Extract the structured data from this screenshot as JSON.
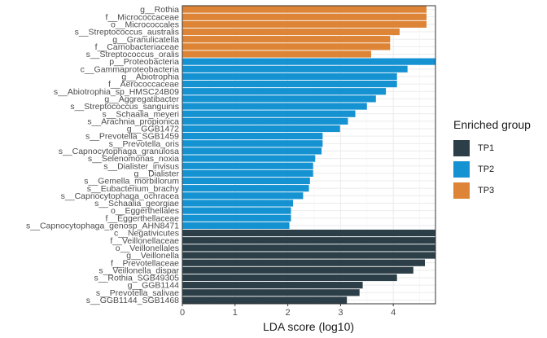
{
  "chart_data": {
    "type": "bar",
    "orientation": "horizontal",
    "xlabel": "LDA score (log10)",
    "ylabel": "",
    "xlim": [
      0,
      4.8
    ],
    "xticks": [
      0,
      1,
      2,
      3,
      4
    ],
    "grid": true,
    "legend": {
      "title": "Enriched group",
      "placement": "right",
      "entries": [
        {
          "name": "TP1",
          "color": "#2C3E47"
        },
        {
          "name": "TP2",
          "color": "#1592D2"
        },
        {
          "name": "TP3",
          "color": "#DD8436"
        }
      ]
    },
    "bars": [
      {
        "label": "g__Rothia",
        "value": 4.63,
        "group": "TP3"
      },
      {
        "label": "f__Micrococcaceae",
        "value": 4.63,
        "group": "TP3"
      },
      {
        "label": "o__Micrococcales",
        "value": 4.63,
        "group": "TP3"
      },
      {
        "label": "s__Streptococcus_australis",
        "value": 4.12,
        "group": "TP3"
      },
      {
        "label": "g__Granulicatella",
        "value": 3.94,
        "group": "TP3"
      },
      {
        "label": "f__Carnobacteriaceae",
        "value": 3.94,
        "group": "TP3"
      },
      {
        "label": "s__Streptococcus_oralis",
        "value": 3.58,
        "group": "TP3"
      },
      {
        "label": "p__Proteobacteria",
        "value": 4.8,
        "group": "TP2"
      },
      {
        "label": "c__Gammaproteobacteria",
        "value": 4.27,
        "group": "TP2"
      },
      {
        "label": "g__Abiotrophia",
        "value": 4.07,
        "group": "TP2"
      },
      {
        "label": "f__Aerococcaceae",
        "value": 4.07,
        "group": "TP2"
      },
      {
        "label": "s__Abiotrophia_sp_HMSC24B09",
        "value": 3.86,
        "group": "TP2"
      },
      {
        "label": "g__Aggregatibacter",
        "value": 3.67,
        "group": "TP2"
      },
      {
        "label": "s__Streptococcus_sanguinis",
        "value": 3.5,
        "group": "TP2"
      },
      {
        "label": "s__Schaalia_meyeri",
        "value": 3.28,
        "group": "TP2"
      },
      {
        "label": "s__Arachnia_propionica",
        "value": 3.14,
        "group": "TP2"
      },
      {
        "label": "g__GGB1472",
        "value": 2.99,
        "group": "TP2"
      },
      {
        "label": "s__Prevotella_SGB1459",
        "value": 2.66,
        "group": "TP2"
      },
      {
        "label": "s__Prevotella_oris",
        "value": 2.66,
        "group": "TP2"
      },
      {
        "label": "s__Capnocytophaga_granulosa",
        "value": 2.64,
        "group": "TP2"
      },
      {
        "label": "s__Selenomonas_noxia",
        "value": 2.52,
        "group": "TP2"
      },
      {
        "label": "s__Dialister_invisus",
        "value": 2.48,
        "group": "TP2"
      },
      {
        "label": "g__Dialister",
        "value": 2.48,
        "group": "TP2"
      },
      {
        "label": "s__Gemella_morbillorum",
        "value": 2.42,
        "group": "TP2"
      },
      {
        "label": "s__Eubacterium_brachy",
        "value": 2.4,
        "group": "TP2"
      },
      {
        "label": "s__Capnocytophaga_ochracea",
        "value": 2.29,
        "group": "TP2"
      },
      {
        "label": "s__Schaalia_georgiae",
        "value": 2.1,
        "group": "TP2"
      },
      {
        "label": "o__Eggerthellales",
        "value": 2.06,
        "group": "TP2"
      },
      {
        "label": "f__Eggerthellaceae",
        "value": 2.06,
        "group": "TP2"
      },
      {
        "label": "s__Capnocytophaga_genosp_AHN8471",
        "value": 2.03,
        "group": "TP2"
      },
      {
        "label": "c__Negativicutes",
        "value": 4.8,
        "group": "TP1"
      },
      {
        "label": "f__Veillonellaceae",
        "value": 4.8,
        "group": "TP1"
      },
      {
        "label": "o__Veillonellales",
        "value": 4.8,
        "group": "TP1"
      },
      {
        "label": "g__Veillonella",
        "value": 4.8,
        "group": "TP1"
      },
      {
        "label": "f__Prevotellaceae",
        "value": 4.6,
        "group": "TP1"
      },
      {
        "label": "s__Veillonella_dispar",
        "value": 4.38,
        "group": "TP1"
      },
      {
        "label": "s__Rothia_SGB49305",
        "value": 4.07,
        "group": "TP1"
      },
      {
        "label": "g__GGB1144",
        "value": 3.42,
        "group": "TP1"
      },
      {
        "label": "s__Prevotella_salivae",
        "value": 3.36,
        "group": "TP1"
      },
      {
        "label": "s__GGB1144_SGB1468",
        "value": 3.12,
        "group": "TP1"
      }
    ]
  }
}
